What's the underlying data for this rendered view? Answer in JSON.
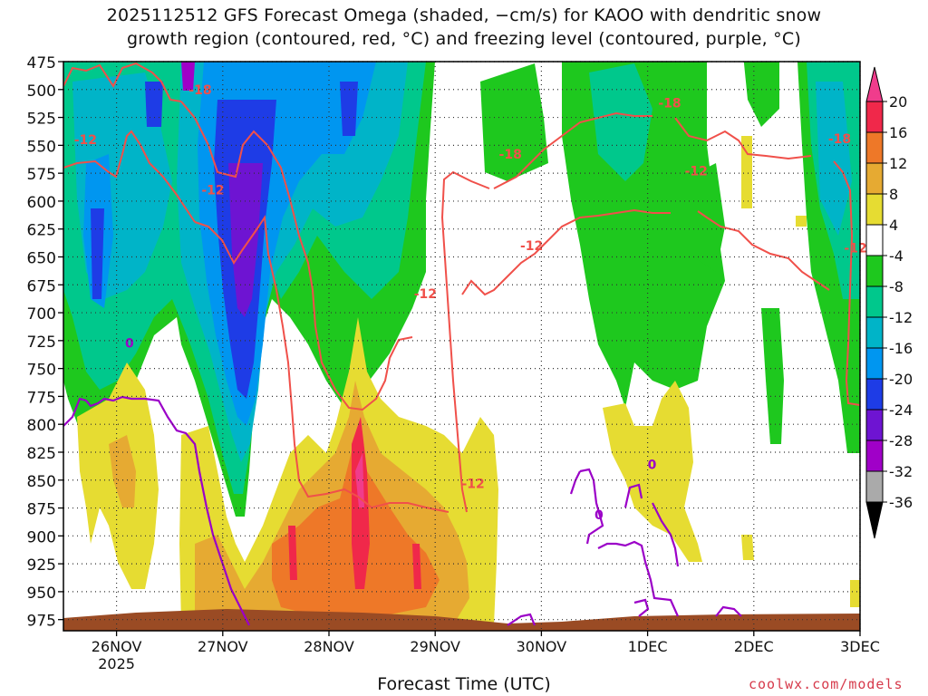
{
  "title_line1": "2025112512 GFS Forecast Omega (shaded, −cm/s) for KAOO with dendritic snow",
  "title_line2": "growth region (contoured, red, °C) and freezing level (contoured, purple, °C)",
  "xlabel": "Forecast Time (UTC)",
  "credit": "coolwx.com/models",
  "colors": {
    "dendritic_contour": "#f0504a",
    "freezing_contour": "#9b00c8",
    "ground": "#9a4b24",
    "gridline": "#555555"
  },
  "chart_data": {
    "type": "heatmap",
    "title": "2025112512 GFS Forecast Omega (shaded, −cm/s) for KAOO with dendritic snow growth region (contoured, red, °C) and freezing level (contoured, purple, °C)",
    "xlabel": "Forecast Time (UTC)",
    "ylabel": "",
    "x_tick_labels": [
      "26NOV",
      "27NOV",
      "28NOV",
      "29NOV",
      "30NOV",
      "1DEC",
      "2DEC",
      "3DEC"
    ],
    "x_tick_sublabel": "2025",
    "x_ticks_days": [
      0.5,
      1.5,
      2.5,
      3.5,
      4.5,
      5.5,
      6.5,
      7.5
    ],
    "xlim_days": [
      0,
      7.5
    ],
    "y_ticks": [
      475,
      500,
      525,
      550,
      575,
      600,
      625,
      650,
      675,
      700,
      725,
      750,
      775,
      800,
      825,
      850,
      875,
      900,
      925,
      950,
      975
    ],
    "ylim": [
      475,
      985
    ],
    "grid": "dotted",
    "colorbar": {
      "labels": [
        20,
        16,
        12,
        8,
        4,
        -4,
        -8,
        -12,
        -16,
        -20,
        -24,
        -28,
        -32,
        -36
      ],
      "bins": [
        {
          "from": 20,
          "to": 24,
          "color": "#f03c8c"
        },
        {
          "from": 16,
          "to": 20,
          "color": "#f0284a"
        },
        {
          "from": 12,
          "to": 16,
          "color": "#ee7828"
        },
        {
          "from": 8,
          "to": 12,
          "color": "#e6aa32"
        },
        {
          "from": 4,
          "to": 8,
          "color": "#e6dc32"
        },
        {
          "from": -4,
          "to": 4,
          "color": "#ffffff"
        },
        {
          "from": -8,
          "to": -4,
          "color": "#1ec81e"
        },
        {
          "from": -12,
          "to": -8,
          "color": "#00c88c"
        },
        {
          "from": -16,
          "to": -12,
          "color": "#00b4c8"
        },
        {
          "from": -20,
          "to": -16,
          "color": "#0096f0"
        },
        {
          "from": -24,
          "to": -20,
          "color": "#1e3ce6"
        },
        {
          "from": -28,
          "to": -24,
          "color": "#6e14d2"
        },
        {
          "from": -32,
          "to": -28,
          "color": "#a000c8"
        },
        {
          "from": -36,
          "to": -32,
          "color": "#aaaaaa"
        },
        {
          "from": -40,
          "to": -36,
          "color": "#000000"
        }
      ]
    },
    "contour_labels": [
      {
        "text": "-18",
        "x": 1.18,
        "p": 500,
        "series": "dendritic"
      },
      {
        "text": "-12",
        "x": 0.1,
        "p": 545,
        "series": "dendritic"
      },
      {
        "text": "-12",
        "x": 1.3,
        "p": 590,
        "series": "dendritic"
      },
      {
        "text": "-18",
        "x": 4.1,
        "p": 558,
        "series": "dendritic"
      },
      {
        "text": "-12",
        "x": 4.3,
        "p": 640,
        "series": "dendritic"
      },
      {
        "text": "-12",
        "x": 3.3,
        "p": 683,
        "series": "dendritic"
      },
      {
        "text": "-18",
        "x": 5.6,
        "p": 512,
        "series": "dendritic"
      },
      {
        "text": "-12",
        "x": 5.85,
        "p": 573,
        "series": "dendritic"
      },
      {
        "text": "-18",
        "x": 7.2,
        "p": 544,
        "series": "dendritic"
      },
      {
        "text": "-12",
        "x": 7.35,
        "p": 642,
        "series": "dendritic"
      },
      {
        "text": "-12",
        "x": 3.75,
        "p": 853,
        "series": "dendritic"
      },
      {
        "text": "0",
        "x": 0.58,
        "p": 727,
        "series": "freezing"
      },
      {
        "text": "0",
        "x": 5.5,
        "p": 836,
        "series": "freezing"
      },
      {
        "text": "0",
        "x": 5.0,
        "p": 881,
        "series": "freezing"
      }
    ]
  }
}
